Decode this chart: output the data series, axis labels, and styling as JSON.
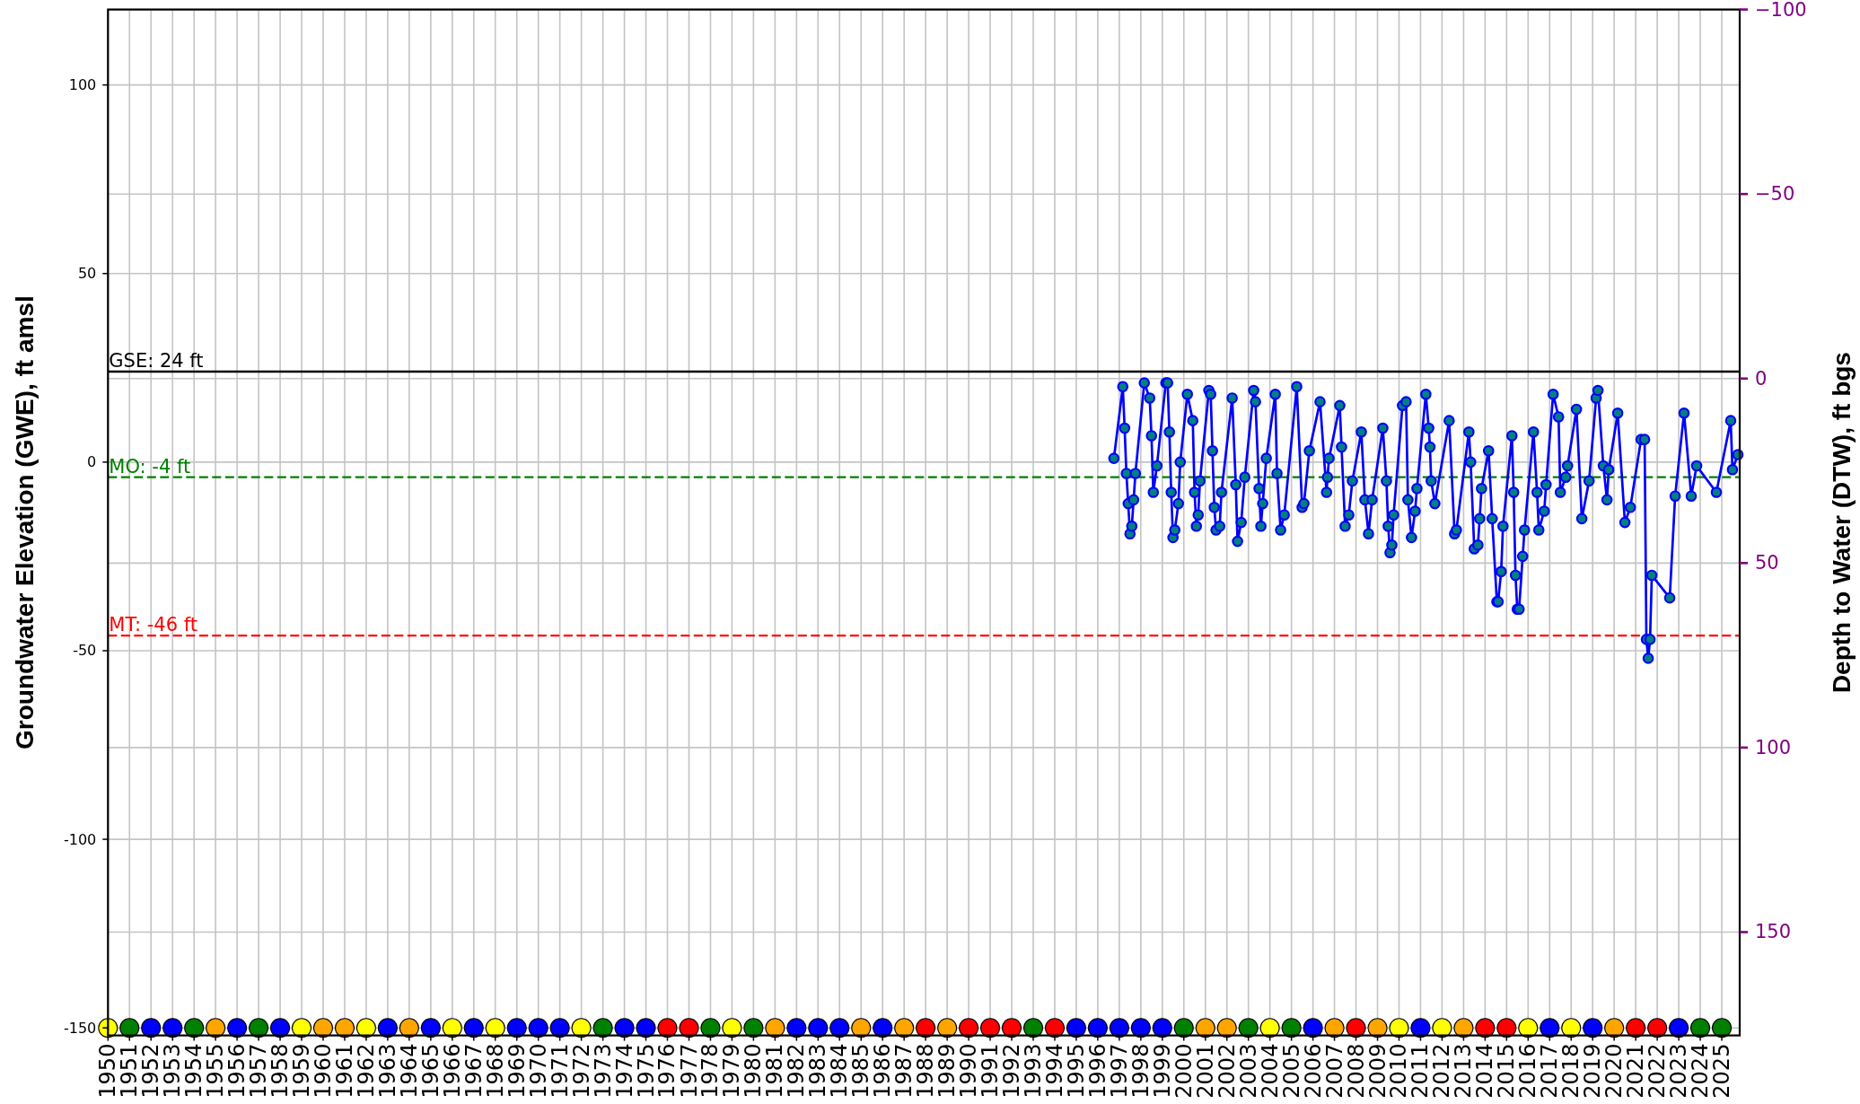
{
  "chart_data": {
    "type": "line",
    "ylabel": "Groundwater Elevation (GWE), ft amsl",
    "y2label": "Depth to Water (DTW), ft bgs",
    "xlim": [
      "1950",
      "2025-11"
    ],
    "xticks": [
      "1950",
      "1951",
      "1952",
      "1953",
      "1954",
      "1955",
      "1956",
      "1957",
      "1958",
      "1959",
      "1960",
      "1961",
      "1962",
      "1963",
      "1964",
      "1965",
      "1966",
      "1967",
      "1968",
      "1969",
      "1970",
      "1971",
      "1972",
      "1973",
      "1974",
      "1975",
      "1976",
      "1977",
      "1978",
      "1979",
      "1980",
      "1981",
      "1982",
      "1983",
      "1984",
      "1985",
      "1986",
      "1987",
      "1988",
      "1989",
      "1990",
      "1991",
      "1992",
      "1993",
      "1994",
      "1995",
      "1996",
      "1997",
      "1998",
      "1999",
      "2000",
      "2001",
      "2002",
      "2003",
      "2004",
      "2005",
      "2006",
      "2007",
      "2008",
      "2009",
      "2010",
      "2011",
      "2012",
      "2013",
      "2014",
      "2015",
      "2016",
      "2017",
      "2018",
      "2019",
      "2020",
      "2021",
      "2022",
      "2023",
      "2024",
      "2025"
    ],
    "ylim": [
      -152,
      120
    ],
    "yticks": [
      -150,
      -100,
      -50,
      0,
      50,
      100
    ],
    "y2lim": [
      178,
      -100
    ],
    "y2ticks": [
      {
        "value": -100,
        "label": "−100"
      },
      {
        "value": -50,
        "label": "−50"
      },
      0,
      50,
      100,
      150
    ],
    "grid": true,
    "marker": "circle",
    "ref_lines": [
      {
        "axis": "y",
        "value": 24,
        "label": "GSE: 24 ft",
        "color": "#000000",
        "line_style": "solid"
      },
      {
        "axis": "y",
        "value": -4,
        "label": "MO: -4 ft",
        "color": "#008000",
        "line_style": "dashed"
      },
      {
        "axis": "y",
        "value": -46,
        "label": "MT: -46 ft",
        "color": "#ff0000",
        "line_style": "dashed"
      }
    ],
    "series": [
      {
        "color": "#0000ff",
        "x": [
          "1996-10",
          "1997-03",
          "1997-04",
          "1997-05",
          "1997-06",
          "1997-07",
          "1997-08",
          "1997-09",
          "1997-10",
          "1998-03",
          "1998-06",
          "1998-07",
          "1998-08",
          "1998-10",
          "1999-03",
          "1999-04",
          "1999-05",
          "1999-06",
          "1999-07",
          "1999-08",
          "1999-10",
          "1999-11",
          "2000-03",
          "2000-06",
          "2000-07",
          "2000-08",
          "2000-09",
          "2000-10",
          "2001-03",
          "2001-04",
          "2001-05",
          "2001-06",
          "2001-07",
          "2001-09",
          "2001-10",
          "2002-04",
          "2002-06",
          "2002-07",
          "2002-09",
          "2002-11",
          "2003-04",
          "2003-05",
          "2003-07",
          "2003-08",
          "2003-09",
          "2003-11",
          "2004-04",
          "2004-05",
          "2004-07",
          "2004-09",
          "2005-04",
          "2005-07",
          "2005-08",
          "2005-11",
          "2006-05",
          "2006-08-20",
          "2006-09-05",
          "2006-10",
          "2007-04",
          "2007-05",
          "2007-07",
          "2007-09",
          "2007-11",
          "2008-04",
          "2008-06",
          "2008-08",
          "2008-10",
          "2009-04",
          "2009-06",
          "2009-07",
          "2009-08",
          "2009-09",
          "2009-10",
          "2010-03",
          "2010-05",
          "2010-06",
          "2010-08",
          "2010-10",
          "2010-11",
          "2011-04",
          "2011-05-20",
          "2011-06-10",
          "2011-07",
          "2011-09",
          "2012-05",
          "2012-08",
          "2012-09",
          "2013-04",
          "2013-05",
          "2013-07",
          "2013-09",
          "2013-10",
          "2013-11",
          "2014-03",
          "2014-05",
          "2014-07-20",
          "2014-08-10",
          "2014-10",
          "2014-11",
          "2015-04",
          "2015-05",
          "2015-06",
          "2015-07",
          "2015-08",
          "2015-10",
          "2015-11",
          "2016-04",
          "2016-06",
          "2016-07",
          "2016-10",
          "2016-11",
          "2017-03",
          "2017-06",
          "2017-07",
          "2017-10",
          "2017-11",
          "2018-04",
          "2018-07",
          "2018-11",
          "2019-03",
          "2019-04",
          "2019-07",
          "2019-09",
          "2019-10",
          "2020-03",
          "2020-07",
          "2020-10",
          "2021-04",
          "2021-06",
          "2021-07",
          "2021-08",
          "2021-09",
          "2021-10",
          "2022-08",
          "2022-11",
          "2023-04",
          "2023-08",
          "2023-11",
          "2024-10",
          "2025-06",
          "2025-07",
          "2025-10"
        ],
        "values": [
          1,
          20,
          9,
          -3,
          -11,
          -19,
          -17,
          -10,
          -3,
          21,
          17,
          7,
          -8,
          -1,
          21,
          21,
          8,
          -8,
          -20,
          -18,
          -11,
          0,
          18,
          11,
          -8,
          -17,
          -14,
          -5,
          19,
          18,
          3,
          -12,
          -18,
          -17,
          -8,
          17,
          -6,
          -21,
          -16,
          -4,
          19,
          16,
          -7,
          -17,
          -11,
          1,
          18,
          -3,
          -18,
          -14,
          20,
          -12,
          -11,
          3,
          16,
          -8,
          -4,
          1,
          15,
          4,
          -17,
          -14,
          -5,
          8,
          -10,
          -19,
          -10,
          9,
          -5,
          -17,
          -24,
          -22,
          -14,
          15,
          16,
          -10,
          -20,
          -13,
          -7,
          18,
          9,
          4,
          -5,
          -11,
          11,
          -19,
          -18,
          8,
          0,
          -23,
          -22,
          -15,
          -7,
          3,
          -15,
          -37,
          -37,
          -29,
          -17,
          7,
          -8,
          -30,
          -39,
          -39,
          -25,
          -18,
          8,
          -8,
          -18,
          -13,
          -6,
          18,
          12,
          -8,
          -4,
          -1,
          14,
          -15,
          -5,
          17,
          19,
          -1,
          -10,
          -2,
          13,
          -16,
          -12,
          6,
          6,
          -47,
          -52,
          -47,
          -30,
          -36,
          -9,
          13,
          -9,
          -1,
          -8,
          11,
          -2,
          2
        ],
        "colors": [
          "#008080",
          "#008080",
          "#008080",
          "#008080",
          "#008080",
          "#008080",
          "#008080",
          "#008080",
          "#008080",
          "#008080",
          "#008080",
          "#008080",
          "#008080",
          "#008080",
          "#008080",
          "#008080",
          "#008080",
          "#008080",
          "#008080",
          "#008080",
          "#008080",
          "#008080",
          "#008080",
          "#008080",
          "#008080",
          "#008080",
          "#008080",
          "#008080",
          "#008080",
          "#008080",
          "#008080",
          "#008080",
          "#008080",
          "#008080",
          "#008080",
          "#008080",
          "#008080",
          "#008080",
          "#008080",
          "#008080",
          "#008080",
          "#008080",
          "#008080",
          "#008080",
          "#008080",
          "#008080",
          "#008080",
          "#008080",
          "#008080",
          "#008080",
          "#008080",
          "#008080",
          "#008080",
          "#008080",
          "#008080",
          "#008080",
          "#008080",
          "#008080",
          "#008080",
          "#008080",
          "#008080",
          "#008080",
          "#008080",
          "#008080",
          "#008080",
          "#008080",
          "#008080",
          "#008080",
          "#008080",
          "#008080",
          "#008080",
          "#008080",
          "#008080",
          "#008080",
          "#008080",
          "#008080",
          "#008080",
          "#008080",
          "#008080",
          "#008080",
          "#008080",
          "#008080",
          "#008080",
          "#008080",
          "#008080",
          "#008080",
          "#008080",
          "#008080",
          "#008080",
          "#008080",
          "#008080",
          "#008080",
          "#008080",
          "#008080",
          "#008080",
          "#008080",
          "#008080",
          "#008080",
          "#008080",
          "#008080",
          "#008080",
          "#008080",
          "#008080",
          "#008080",
          "#008080",
          "#008080",
          "#008080",
          "#008080",
          "#008080",
          "#008080",
          "#008080",
          "#008080",
          "#008080",
          "#008080",
          "#008080",
          "#008080",
          "#008080",
          "#008080",
          "#008080",
          "#008080",
          "#008080",
          "#008080",
          "#008080",
          "#008080",
          "#008080",
          "#008080",
          "#008080",
          "#008080",
          "#008080",
          "#008080",
          "#008080",
          "#008080",
          "#008080",
          "#008080",
          "#008080",
          "#008080",
          "#008080",
          "#008080",
          "#008080",
          "#008080",
          "#008080",
          "#008080"
        ]
      },
      {
        "type": "scatter",
        "x": [
          "1950",
          "1951",
          "1952",
          "1953",
          "1954",
          "1955",
          "1956",
          "1957",
          "1958",
          "1959",
          "1960",
          "1961",
          "1962",
          "1963",
          "1964",
          "1965",
          "1966",
          "1967",
          "1968",
          "1969",
          "1970",
          "1971",
          "1972",
          "1973",
          "1974",
          "1975",
          "1976",
          "1977",
          "1978",
          "1979",
          "1980",
          "1981",
          "1982",
          "1983",
          "1984",
          "1985",
          "1986",
          "1987",
          "1988",
          "1989",
          "1990",
          "1991",
          "1992",
          "1993",
          "1994",
          "1995",
          "1996",
          "1997",
          "1998",
          "1999",
          "2000",
          "2001",
          "2002",
          "2003",
          "2004",
          "2005",
          "2006",
          "2007",
          "2008",
          "2009",
          "2010",
          "2011",
          "2012",
          "2013",
          "2014",
          "2015",
          "2016",
          "2017",
          "2018",
          "2019",
          "2020",
          "2021",
          "2022",
          "2023",
          "2024",
          "2025"
        ],
        "values": [
          -150,
          -150,
          -150,
          -150,
          -150,
          -150,
          -150,
          -150,
          -150,
          -150,
          -150,
          -150,
          -150,
          -150,
          -150,
          -150,
          -150,
          -150,
          -150,
          -150,
          -150,
          -150,
          -150,
          -150,
          -150,
          -150,
          -150,
          -150,
          -150,
          -150,
          -150,
          -150,
          -150,
          -150,
          -150,
          -150,
          -150,
          -150,
          -150,
          -150,
          -150,
          -150,
          -150,
          -150,
          -150,
          -150,
          -150,
          -150,
          -150,
          -150,
          -150,
          -150,
          -150,
          -150,
          -150,
          -150,
          -150,
          -150,
          -150,
          -150,
          -150,
          -150,
          -150,
          -150,
          -150,
          -150,
          -150,
          -150,
          -150,
          -150,
          -150,
          -150,
          -150,
          -150,
          -150,
          -150
        ],
        "colors": [
          "#ffff00",
          "#008000",
          "#0000ff",
          "#0000ff",
          "#008000",
          "#ffa500",
          "#0000ff",
          "#008000",
          "#0000ff",
          "#ffff00",
          "#ffa500",
          "#ffa500",
          "#ffff00",
          "#0000ff",
          "#ffa500",
          "#0000ff",
          "#ffff00",
          "#0000ff",
          "#ffff00",
          "#0000ff",
          "#0000ff",
          "#0000ff",
          "#ffff00",
          "#008000",
          "#0000ff",
          "#0000ff",
          "#ff0000",
          "#ff0000",
          "#008000",
          "#ffff00",
          "#008000",
          "#ffa500",
          "#0000ff",
          "#0000ff",
          "#0000ff",
          "#ffa500",
          "#0000ff",
          "#ffa500",
          "#ff0000",
          "#ffa500",
          "#ff0000",
          "#ff0000",
          "#ff0000",
          "#008000",
          "#ff0000",
          "#0000ff",
          "#0000ff",
          "#0000ff",
          "#0000ff",
          "#0000ff",
          "#008000",
          "#ffa500",
          "#ffa500",
          "#008000",
          "#ffff00",
          "#008000",
          "#0000ff",
          "#ffa500",
          "#ff0000",
          "#ffa500",
          "#ffff00",
          "#0000ff",
          "#ffff00",
          "#ffa500",
          "#ff0000",
          "#ff0000",
          "#ffff00",
          "#0000ff",
          "#ffff00",
          "#0000ff",
          "#ffa500",
          "#ff0000",
          "#ff0000",
          "#0000ff",
          "#008000",
          "#008000"
        ]
      }
    ]
  }
}
